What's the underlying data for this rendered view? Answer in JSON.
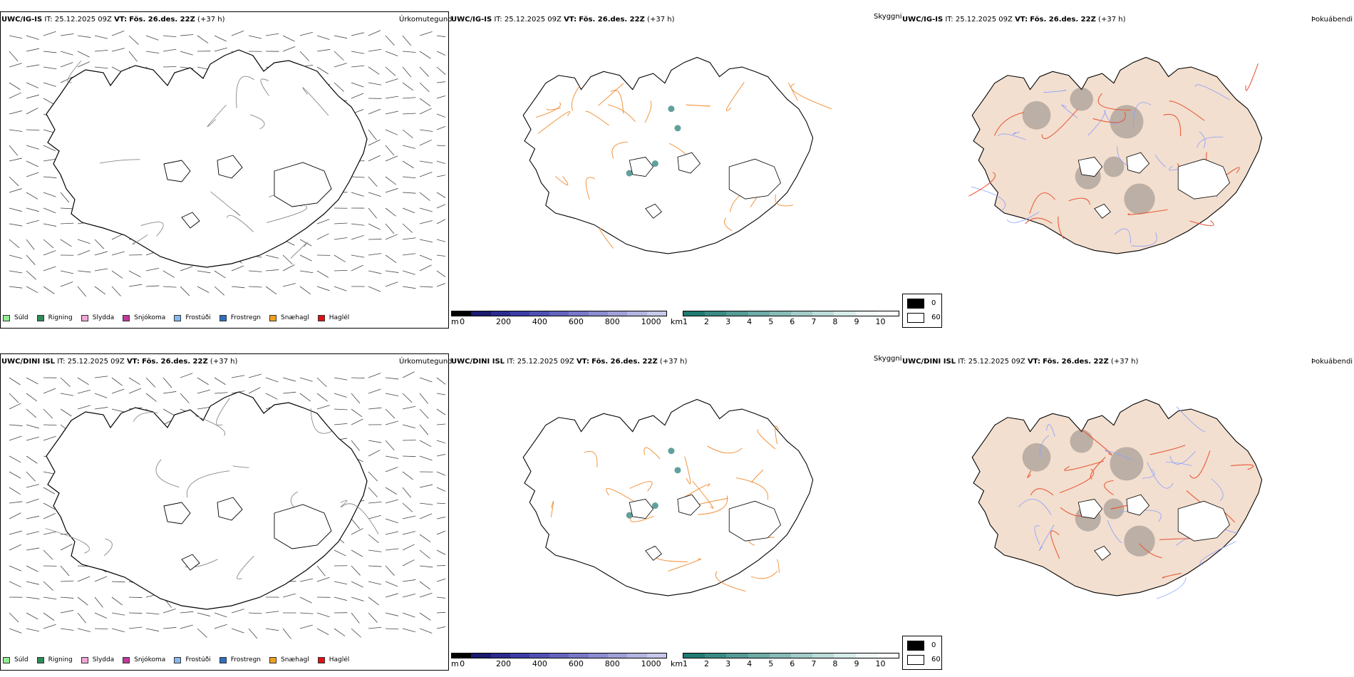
{
  "rows": [
    {
      "model": "UWC/IG-IS",
      "it_label": "IT:",
      "it_value": "25.12.2025 09Z",
      "vt_label": "VT:",
      "vt_value": "Fös. 26.des. 22Z",
      "lead": "(+37 h)"
    },
    {
      "model": "UWC/DINI ISL",
      "it_label": "IT:",
      "it_value": "25.12.2025 09Z",
      "vt_label": "VT:",
      "vt_value": "Fös. 26.des. 22Z",
      "lead": "(+37 h)"
    }
  ],
  "params": {
    "precip_type": "Úrkomutegund",
    "visibility": "Skyggni",
    "fog": "Þokuábendi"
  },
  "precip_legend": [
    {
      "label": "Súld",
      "color": "#90ee90"
    },
    {
      "label": "Rigning",
      "color": "#2e8b57"
    },
    {
      "label": "Slydda",
      "color": "#f4a6d7"
    },
    {
      "label": "Snjókoma",
      "color": "#c0399a"
    },
    {
      "label": "Frostúði",
      "color": "#87b8f0"
    },
    {
      "label": "Frostregn",
      "color": "#2f6fc0"
    },
    {
      "label": "Snæhagl",
      "color": "#f0a020"
    },
    {
      "label": "Haglél",
      "color": "#e01010"
    }
  ],
  "elevation_bar": {
    "unit": "m",
    "ticks": [
      "0",
      "200",
      "400",
      "600",
      "800",
      "1000"
    ],
    "colors": [
      "#000000",
      "#1a1a6e",
      "#2b2b8f",
      "#3c3ca6",
      "#5050b4",
      "#6464be",
      "#7878c8",
      "#8c8cd0",
      "#a0a0d8",
      "#b4b4e0",
      "#c8c8ea"
    ]
  },
  "visibility_bar": {
    "unit": "km",
    "ticks": [
      "1",
      "2",
      "3",
      "4",
      "5",
      "6",
      "7",
      "8",
      "9",
      "10"
    ],
    "colors": [
      "#1f7a72",
      "#3a8a84",
      "#549a95",
      "#6eaba6",
      "#88bbb7",
      "#a2ccc8",
      "#bcdcd9",
      "#d6ecea",
      "#eef7f6",
      "#ffffff"
    ]
  },
  "fog_legend": [
    {
      "label": "0",
      "color": "#000000"
    },
    {
      "label": "60",
      "color": "#ffffff"
    }
  ],
  "map_colors": {
    "roads_orange": "#f08a2c",
    "roads_red": "#e85a3a",
    "land_fog": "#f3dfcf",
    "rivers": "#8aa0ff",
    "coast": "#000000",
    "barbs": "#444444"
  }
}
